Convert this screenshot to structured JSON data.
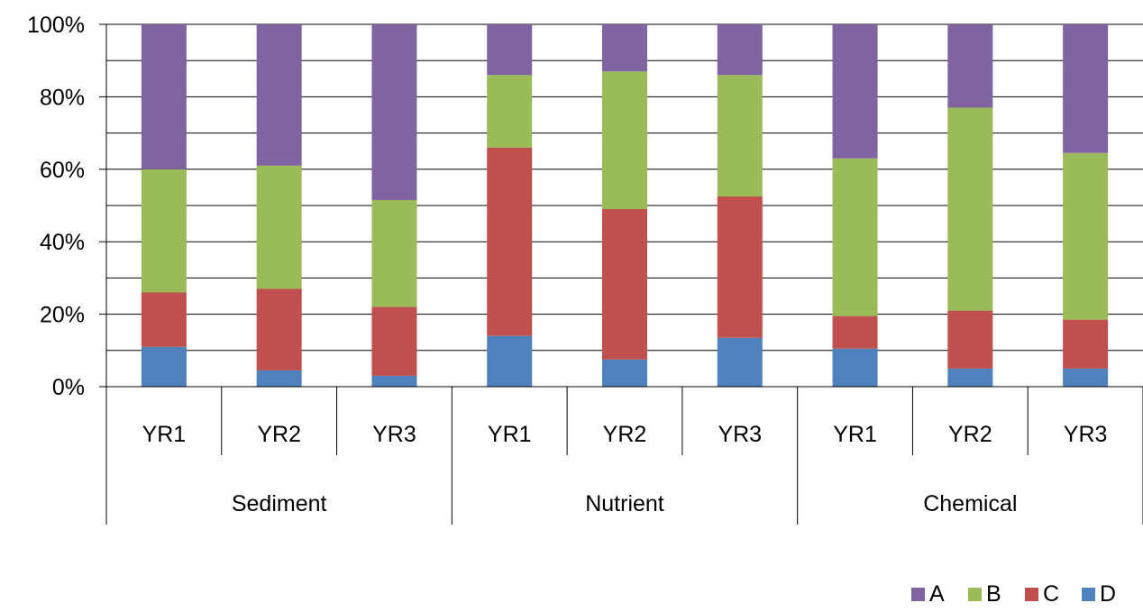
{
  "chart_data": {
    "type": "bar",
    "stacked": "percent",
    "groups": [
      "Sediment",
      "Nutrient",
      "Chemical"
    ],
    "categories": [
      "YR1",
      "YR2",
      "YR3",
      "YR1",
      "YR2",
      "YR3",
      "YR1",
      "YR2",
      "YR3"
    ],
    "series": [
      {
        "name": "D",
        "color": "#4F81BD",
        "values": [
          11,
          4.5,
          3,
          14,
          7.5,
          13.5,
          10.5,
          5,
          5
        ]
      },
      {
        "name": "C",
        "color": "#C0504D",
        "values": [
          15,
          22.5,
          19,
          52,
          41.5,
          39,
          9,
          16,
          13.5
        ]
      },
      {
        "name": "B",
        "color": "#9BBB59",
        "values": [
          34,
          34,
          29.5,
          20,
          38,
          33.5,
          43.5,
          56,
          46
        ]
      },
      {
        "name": "A",
        "color": "#8064A2",
        "values": [
          40,
          39,
          48.5,
          14,
          13,
          14,
          37,
          23,
          35.5
        ]
      }
    ],
    "ylim": [
      0,
      100
    ],
    "yticks": [
      "0%",
      "20%",
      "40%",
      "60%",
      "80%",
      "100%"
    ],
    "ytick_values": [
      0,
      20,
      40,
      60,
      80,
      100
    ],
    "grid": true,
    "legend": {
      "position": "bottom-right",
      "order": [
        "A",
        "B",
        "C",
        "D"
      ]
    }
  }
}
